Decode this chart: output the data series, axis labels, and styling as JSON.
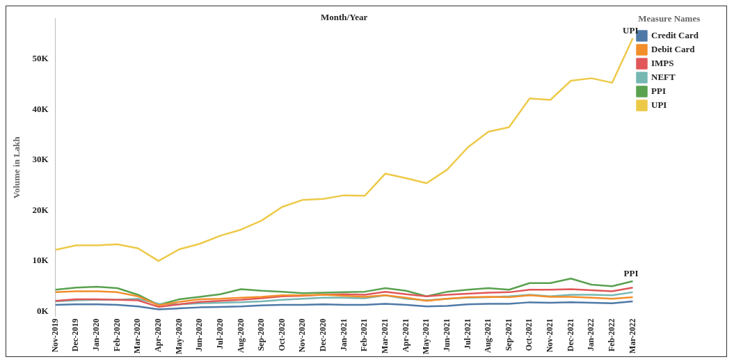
{
  "chart_data": {
    "type": "line",
    "xlabel": "Month/Year",
    "ylabel": "Volume in Lakh",
    "legend_title": "Measure Names",
    "legend": "right",
    "grid": false,
    "marker": "none",
    "line_style": "solid",
    "categories": [
      "Nov-2019",
      "Dec-2019",
      "Jan-2020",
      "Feb-2020",
      "Mar-2020",
      "Apr-2020",
      "May-2020",
      "Jun-2020",
      "Jul-2020",
      "Aug-2020",
      "Sep-2020",
      "Oct-2020",
      "Nov-2020",
      "Dec-2020",
      "Jan-2021",
      "Feb-2021",
      "Mar-2021",
      "Apr-2021",
      "May-2021",
      "Jun-2021",
      "Jul-2021",
      "Aug-2021",
      "Sep-2021",
      "Oct-2021",
      "Nov-2021",
      "Dec-2021",
      "Jan-2022",
      "Feb-2022",
      "Mar-2022"
    ],
    "ylim": [
      -1000,
      58000
    ],
    "yticks": [
      {
        "value": 0,
        "label": "0K"
      },
      {
        "value": 10000,
        "label": "10K"
      },
      {
        "value": 20000,
        "label": "20K"
      },
      {
        "value": 30000,
        "label": "30K"
      },
      {
        "value": 40000,
        "label": "40K"
      },
      {
        "value": 50000,
        "label": "50K"
      }
    ],
    "series": [
      {
        "name": "Credit Card",
        "color": "#4e79a7",
        "values": [
          1300,
          1400,
          1400,
          1300,
          1000,
          400,
          600,
          800,
          900,
          1000,
          1200,
          1300,
          1300,
          1400,
          1300,
          1300,
          1500,
          1300,
          1000,
          1100,
          1400,
          1500,
          1500,
          1800,
          1700,
          1800,
          1700,
          1600,
          2000
        ]
      },
      {
        "name": "Debit Card",
        "color": "#f28e2b",
        "values": [
          3800,
          4000,
          4000,
          3800,
          3000,
          1200,
          1900,
          2400,
          2500,
          2700,
          2900,
          3200,
          3200,
          3300,
          3100,
          2900,
          3200,
          2700,
          2100,
          2500,
          2800,
          2900,
          2800,
          3200,
          2900,
          2900,
          2700,
          2500,
          2800
        ]
      },
      {
        "name": "IMPS",
        "color": "#e15759",
        "values": [
          2100,
          2400,
          2400,
          2300,
          2200,
          900,
          1400,
          1900,
          2100,
          2300,
          2600,
          3000,
          3100,
          3300,
          3400,
          3300,
          3900,
          3400,
          3000,
          3300,
          3500,
          3700,
          3800,
          4300,
          4300,
          4400,
          4200,
          4000,
          4700
        ]
      },
      {
        "name": "NEFT",
        "color": "#76b7b2",
        "values": [
          2000,
          2200,
          2300,
          2300,
          2500,
          1500,
          1400,
          1600,
          1700,
          1800,
          2000,
          2300,
          2500,
          2700,
          2700,
          2600,
          3200,
          2500,
          2200,
          2500,
          2700,
          2800,
          3000,
          3300,
          3000,
          3300,
          3300,
          3200,
          3800
        ]
      },
      {
        "name": "PPI",
        "color": "#59a14f",
        "values": [
          4300,
          4700,
          4900,
          4600,
          3300,
          1300,
          2400,
          2900,
          3400,
          4400,
          4100,
          3900,
          3600,
          3700,
          3800,
          3900,
          4600,
          4100,
          3000,
          3900,
          4300,
          4600,
          4300,
          5600,
          5600,
          6500,
          5300,
          5000,
          6000
        ]
      },
      {
        "name": "UPI",
        "color": "#edc948",
        "values": [
          12200,
          13100,
          13100,
          13300,
          12500,
          10000,
          12300,
          13400,
          15000,
          16200,
          18000,
          20700,
          22100,
          22300,
          23000,
          22900,
          27300,
          26400,
          25400,
          28100,
          32500,
          35600,
          36500,
          42200,
          41900,
          45700,
          46200,
          45300,
          54100
        ]
      }
    ],
    "annotations": [
      {
        "text": "UPI",
        "x": "Mar-2022",
        "y": 54100
      },
      {
        "text": "PPI",
        "x": "Mar-2022",
        "y": 6000
      }
    ]
  }
}
